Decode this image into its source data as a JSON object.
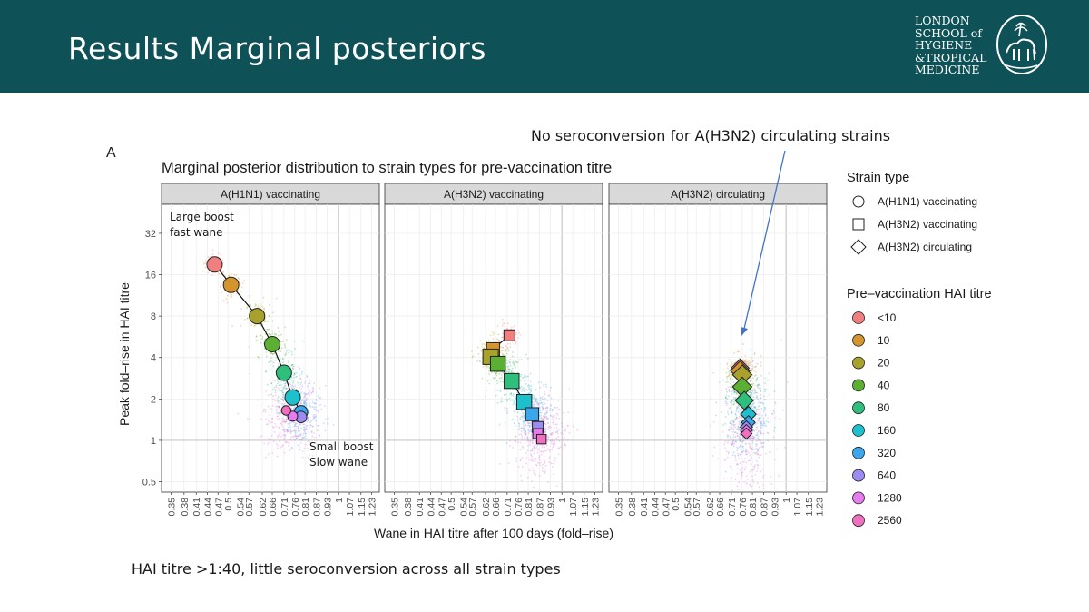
{
  "slide": {
    "title": "Results Marginal posteriors",
    "logo_lines": [
      "LONDON",
      "SCHOOL of",
      "HYGIENE",
      "&TROPICAL",
      "MEDICINE"
    ],
    "callout": "No seroconversion for A(H3N2) circulating strains",
    "footer_note": "HAI titre >1:40, little seroconversion across all strain types",
    "header_color": "#0e5258"
  },
  "chart_data": {
    "type": "scatter",
    "panel_letter": "A",
    "title": "Marginal posterior distribution to strain types for pre-vaccination titre",
    "xlabel": "Wane in HAI titre after 100 days (fold–rise)",
    "ylabel": "Peak fold–rise in HAI titre",
    "x_scale": "log",
    "y_scale": "log",
    "x_ticks": [
      "0.35",
      "0.38",
      "0.41",
      "0.44",
      "0.47",
      "0.5",
      "0.54",
      "0.57",
      "0.62",
      "0.66",
      "0.71",
      "0.76",
      "0.81",
      "0.87",
      "0.93",
      "1",
      "1.07",
      "1.15",
      "1.23"
    ],
    "y_ticks": [
      "32",
      "16",
      "8",
      "4",
      "2",
      "1",
      "0.5"
    ],
    "xlim": [
      0.33,
      1.29
    ],
    "ylim": [
      0.42,
      52
    ],
    "grid": true,
    "panels": [
      "A(H1N1) vaccinating",
      "A(H3N2) vaccinating",
      "A(H3N2) circulating"
    ],
    "legend_position": "right",
    "legend_strain_title": "Strain type",
    "legend_titre_title": "Pre–vaccination HAI titre",
    "strain_types": [
      {
        "label": "A(H1N1) vaccinating",
        "shape": "circle"
      },
      {
        "label": "A(H3N2) vaccinating",
        "shape": "square"
      },
      {
        "label": "A(H3N2) circulating",
        "shape": "diamond"
      }
    ],
    "titre_levels": [
      "<10",
      "10",
      "20",
      "40",
      "80",
      "160",
      "320",
      "640",
      "1280",
      "2560"
    ],
    "titre_colors": [
      "#f08080",
      "#d4952e",
      "#a8a12c",
      "#5bb033",
      "#2ebf7d",
      "#1fc0cd",
      "#3aa6ec",
      "#9c8cf2",
      "#e77bf0",
      "#f06fbf"
    ],
    "annotations": [
      {
        "panel": 0,
        "text": [
          "Large boost",
          "fast wane"
        ]
      },
      {
        "panel": 0,
        "text": [
          "Small boost",
          "Slow wane"
        ]
      }
    ],
    "series": [
      {
        "name": "A(H1N1) vaccinating",
        "shape": "circle",
        "x": [
          0.46,
          0.51,
          0.6,
          0.66,
          0.71,
          0.75,
          0.79,
          0.79,
          0.75,
          0.72
        ],
        "y": [
          19,
          13.5,
          8,
          5,
          3.1,
          2.05,
          1.6,
          1.48,
          1.5,
          1.65
        ],
        "size": [
          1,
          1,
          1,
          1,
          1,
          1,
          0.8,
          0.6,
          0.45,
          0.4
        ]
      },
      {
        "name": "A(H3N2) vaccinating",
        "shape": "square",
        "x": [
          0.72,
          0.65,
          0.64,
          0.67,
          0.73,
          0.79,
          0.83,
          0.86,
          0.86,
          0.88
        ],
        "y": [
          5.8,
          4.6,
          4.05,
          3.6,
          2.7,
          1.9,
          1.55,
          1.25,
          1.12,
          1.02
        ],
        "size": [
          0.55,
          0.75,
          1,
          0.95,
          0.95,
          0.95,
          0.75,
          0.55,
          0.45,
          0.4
        ]
      },
      {
        "name": "A(H3N2) circulating",
        "shape": "diamond",
        "x": [
          0.75,
          0.75,
          0.76,
          0.76,
          0.77,
          0.79,
          0.79,
          0.78,
          0.78,
          0.78
        ],
        "y": [
          3.35,
          3.2,
          3.0,
          2.45,
          1.95,
          1.55,
          1.35,
          1.25,
          1.18,
          1.12
        ],
        "size": [
          0.9,
          1,
          1,
          1,
          0.9,
          0.7,
          0.55,
          0.45,
          0.4,
          0.35
        ]
      }
    ]
  }
}
